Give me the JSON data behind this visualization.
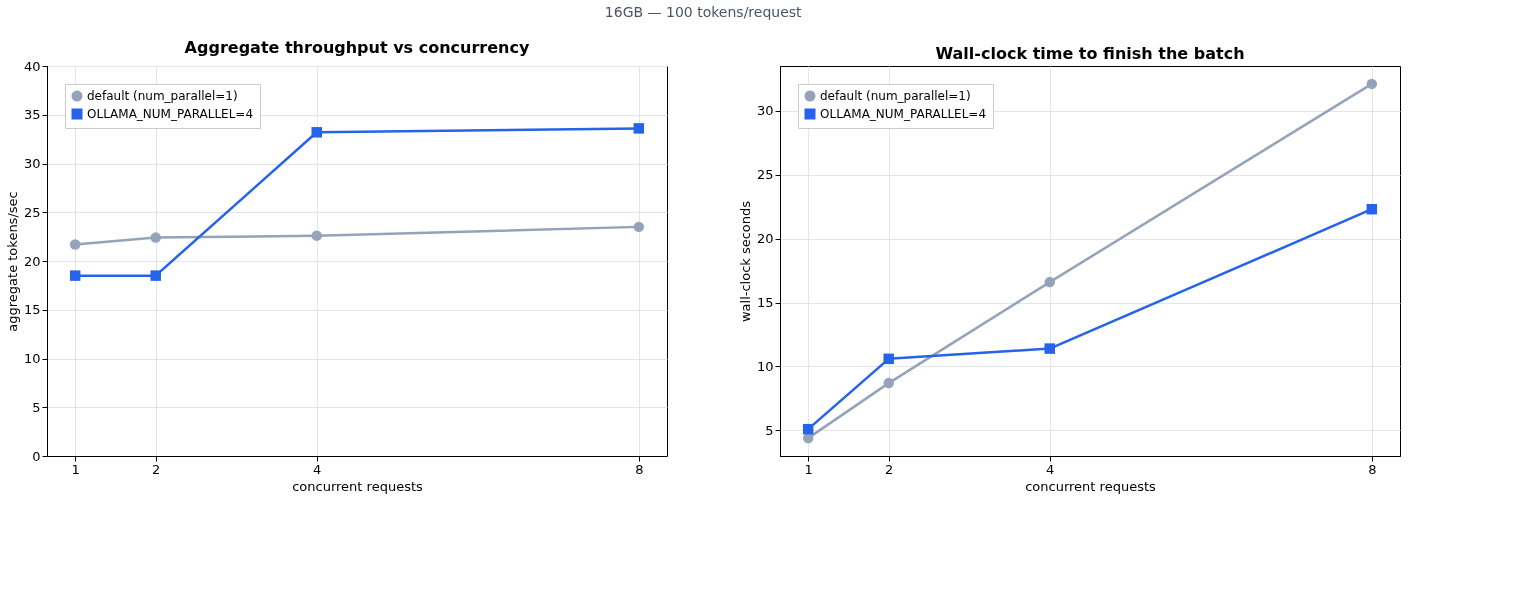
{
  "chart_data": [
    {
      "type": "line",
      "subtitle": "16GB — 100 tokens/request",
      "title": "Aggregate throughput vs concurrency",
      "xlabel": "concurrent requests",
      "ylabel": "aggregate tokens/sec",
      "x": [
        1,
        2,
        4,
        8
      ],
      "xlim": [
        0.65,
        8.35
      ],
      "xticks": [
        1,
        2,
        4,
        8
      ],
      "ylim": [
        0,
        40
      ],
      "yticks": [
        0,
        5,
        10,
        15,
        20,
        25,
        30,
        35,
        40
      ],
      "grid": true,
      "legend": "top left",
      "series": [
        {
          "name": "default (num_parallel=1)",
          "color": "#94a3b8",
          "marker": "circle",
          "values": [
            21.7,
            22.4,
            22.6,
            23.5
          ]
        },
        {
          "name": "OLLAMA_NUM_PARALLEL=4",
          "color": "#2563eb",
          "marker": "square",
          "values": [
            18.5,
            18.5,
            33.2,
            33.6
          ]
        }
      ]
    },
    {
      "type": "line",
      "title": "Wall-clock time to finish the batch",
      "xlabel": "concurrent requests",
      "ylabel": "wall-clock seconds",
      "x": [
        1,
        2,
        4,
        8
      ],
      "xlim": [
        0.65,
        8.35
      ],
      "xticks": [
        1,
        2,
        4,
        8
      ],
      "ylim": [
        3,
        33.5
      ],
      "yticks": [
        5,
        10,
        15,
        20,
        25,
        30
      ],
      "grid": true,
      "legend": "top left",
      "series": [
        {
          "name": "default (num_parallel=1)",
          "color": "#94a3b8",
          "marker": "circle",
          "values": [
            4.4,
            8.7,
            16.6,
            32.1
          ]
        },
        {
          "name": "OLLAMA_NUM_PARALLEL=4",
          "color": "#2563eb",
          "marker": "square",
          "values": [
            5.1,
            10.6,
            11.4,
            22.3
          ]
        }
      ]
    }
  ]
}
